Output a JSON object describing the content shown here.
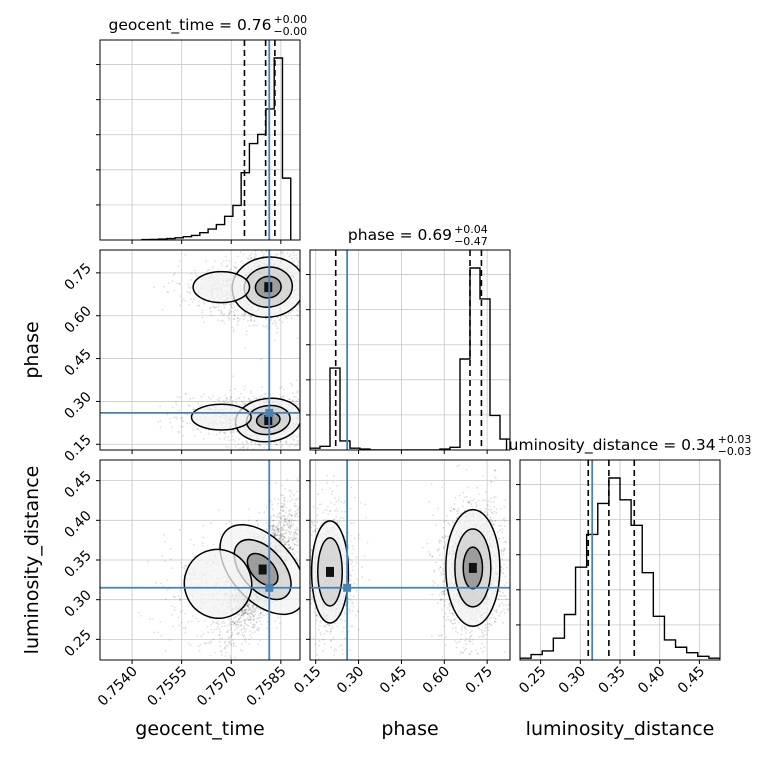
{
  "colors": {
    "truth": "#4682b4",
    "line": "#000000",
    "grid": "#c8c8c8",
    "points": "#000000"
  },
  "chart_data": {
    "type": "corner",
    "parameters": [
      "geocent_time",
      "phase",
      "luminosity_distance"
    ],
    "titles": [
      {
        "param": "geocent_time",
        "text": "geocent_time = 0.76",
        "sup": "+0.00",
        "sub": "−0.00"
      },
      {
        "param": "phase",
        "text": "phase = 0.69",
        "sup": "+0.04",
        "sub": "−0.47"
      },
      {
        "param": "luminosity_distance",
        "text": "luminosity_distance = 0.34",
        "sup": "+0.03",
        "sub": "−0.03"
      }
    ],
    "axis_labels": {
      "geocent_time": "geocent_time",
      "phase": "phase",
      "luminosity_distance": "luminosity_distance"
    },
    "ranges": {
      "geocent_time": [
        0.75303,
        0.75908
      ],
      "phase": [
        0.13,
        0.83
      ],
      "luminosity_distance": [
        0.224,
        0.476
      ]
    },
    "ticks": {
      "geocent_time": {
        "values": [
          0.754,
          0.7555,
          0.757,
          0.7585
        ],
        "labels": [
          "0.7540",
          "0.7555",
          "0.7570",
          "0.7585"
        ]
      },
      "phase": {
        "values": [
          0.15,
          0.3,
          0.45,
          0.6,
          0.75
        ],
        "labels": [
          "0.15",
          "0.30",
          "0.45",
          "0.60",
          "0.75"
        ]
      },
      "luminosity_distance": {
        "values": [
          0.25,
          0.3,
          0.35,
          0.4,
          0.45
        ],
        "labels": [
          "0.25",
          "0.30",
          "0.35",
          "0.40",
          "0.45"
        ]
      }
    },
    "truths": {
      "geocent_time": 0.75815,
      "phase": 0.26,
      "luminosity_distance": 0.315
    },
    "quantiles": {
      "geocent_time": [
        0.7574,
        0.75804,
        0.75832
      ],
      "phase": [
        0.22,
        0.69,
        0.73
      ],
      "luminosity_distance": [
        0.31,
        0.336,
        0.368
      ]
    },
    "histograms": {
      "geocent_time": {
        "edges": [
          0.7543,
          0.75455,
          0.7548,
          0.75505,
          0.7553,
          0.75555,
          0.7558,
          0.75605,
          0.7563,
          0.75655,
          0.7568,
          0.75705,
          0.7573,
          0.75755,
          0.7578,
          0.75805,
          0.7583,
          0.75855,
          0.7588
        ],
        "counts": [
          0.2,
          0.3,
          0.5,
          0.8,
          1.2,
          1.8,
          2.5,
          4,
          6,
          8.5,
          13,
          19,
          37,
          53,
          58,
          72,
          100,
          34
        ]
      },
      "phase": {
        "edges": [
          0.13,
          0.165,
          0.2,
          0.235,
          0.27,
          0.305,
          0.34,
          0.375,
          0.41,
          0.445,
          0.48,
          0.515,
          0.55,
          0.585,
          0.62,
          0.655,
          0.69,
          0.725,
          0.76,
          0.795,
          0.83
        ],
        "counts": [
          1,
          2,
          45,
          5,
          1,
          0.5,
          0,
          0,
          0,
          0,
          0,
          0,
          0,
          0.5,
          1.5,
          50,
          100,
          83,
          19,
          6
        ]
      },
      "luminosity_distance": {
        "edges": [
          0.224,
          0.238,
          0.252,
          0.266,
          0.28,
          0.294,
          0.308,
          0.322,
          0.336,
          0.35,
          0.364,
          0.378,
          0.392,
          0.406,
          0.42,
          0.434,
          0.448,
          0.462,
          0.476
        ],
        "counts": [
          1,
          3,
          5,
          12,
          25,
          51,
          69,
          86,
          100,
          88,
          74,
          48,
          24,
          11,
          7,
          4,
          2,
          1
        ]
      }
    },
    "density_components": {
      "geocent_time|phase": [
        {
          "x": 0.75812,
          "y": 0.7,
          "sx": 0.00052,
          "sy": 0.05,
          "rho": 0.1,
          "w": 0.65
        },
        {
          "x": 0.7567,
          "y": 0.7,
          "sx": 0.00055,
          "sy": 0.035,
          "rho": 0.0,
          "w": 0.18
        },
        {
          "x": 0.75812,
          "y": 0.235,
          "sx": 0.0005,
          "sy": 0.038,
          "rho": 0.1,
          "w": 0.45
        },
        {
          "x": 0.7567,
          "y": 0.245,
          "sx": 0.0006,
          "sy": 0.03,
          "rho": 0.0,
          "w": 0.15
        }
      ],
      "geocent_time|luminosity_distance": [
        {
          "x": 0.75795,
          "y": 0.338,
          "sx": 0.00045,
          "sy": 0.032,
          "rho": 0.75,
          "w": 1.0
        },
        {
          "x": 0.7566,
          "y": 0.32,
          "sx": 0.0007,
          "sy": 0.03,
          "rho": 0.3,
          "w": 0.18
        }
      ],
      "phase|luminosity_distance": [
        {
          "x": 0.2,
          "y": 0.335,
          "sx": 0.035,
          "sy": 0.035,
          "rho": 0.0,
          "w": 0.55
        },
        {
          "x": 0.7,
          "y": 0.34,
          "sx": 0.045,
          "sy": 0.035,
          "rho": 0.0,
          "w": 1.0
        }
      ]
    },
    "contour_levels": [
      0.18,
      0.45,
      0.75
    ],
    "grid": true,
    "truth_color": "#4682b4"
  }
}
